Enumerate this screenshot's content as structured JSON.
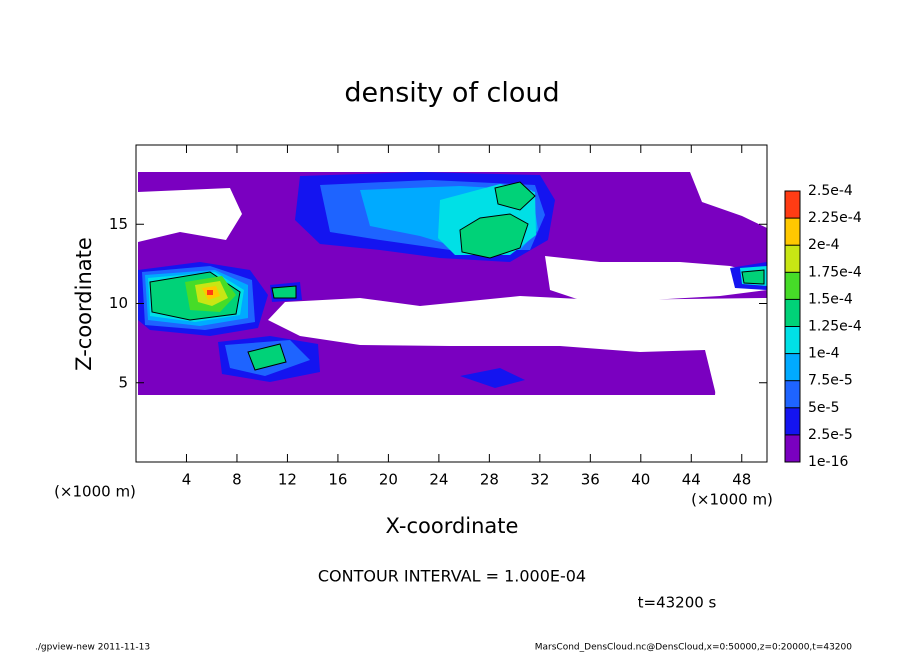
{
  "chart_data": {
    "type": "contour",
    "title": "density of cloud",
    "x_label": "X-coordinate",
    "y_label": "Z-coordinate",
    "x_unit_left": "(×1000 m)",
    "x_unit_right": "(×1000 m)",
    "xlim": [
      0,
      50
    ],
    "xticks": [
      4,
      8,
      12,
      16,
      20,
      24,
      28,
      32,
      36,
      40,
      44,
      48
    ],
    "ylim": [
      0,
      20
    ],
    "yticks": [
      5,
      10,
      15
    ],
    "levels": [
      1e-16,
      {
        "value": 2.5e-05,
        "label": "2.5e-5"
      },
      {
        "value": 5e-05,
        "label": "5e-5"
      },
      {
        "value": 7.5e-05,
        "label": "7.5e-5"
      },
      {
        "value": 0.0001,
        "label": "1e-4"
      },
      {
        "value": 0.000125,
        "label": "1.25e-4"
      },
      {
        "value": 0.00015,
        "label": "1.5e-4"
      },
      {
        "value": 0.000175,
        "label": "1.75e-4"
      },
      {
        "value": 0.0002,
        "label": "2e-4"
      },
      {
        "value": 0.000225,
        "label": "2.25e-4"
      },
      {
        "value": 0.00025,
        "label": "2.5e-4"
      }
    ],
    "colors": [
      "#7a00c0",
      "#1414f0",
      "#1e64ff",
      "#00aaff",
      "#00e0e6",
      "#00d278",
      "#46dc28",
      "#c8e614",
      "#ffc800",
      "#ff3c14"
    ],
    "contour_interval": "CONTOUR INTERVAL = 1.000E-04",
    "time_label": "t=43200 s",
    "footer_left": "./gpview-new  2011-11-13",
    "footer_right": "MarsCond_DensCloud.nc@DensCloud,x=0:50000,z=0:20000,t=43200"
  }
}
